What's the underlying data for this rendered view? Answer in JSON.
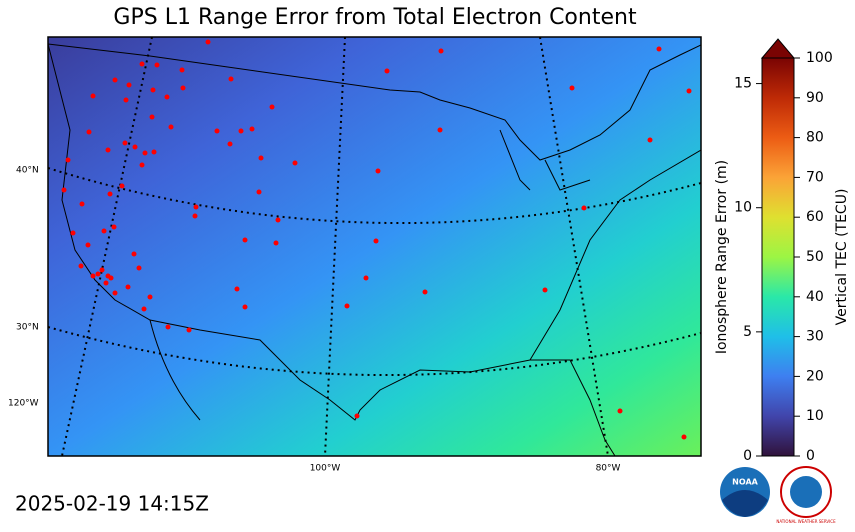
{
  "map": {
    "title": "GPS L1 Range Error from Total Electron Content",
    "timestamp": "2025-02-19 14:15Z",
    "graticule_labels": {
      "lat_40": "40°N",
      "lat_30": "30°N",
      "lon_120": "120°W",
      "lon_100": "100°W",
      "lon_80": "80°W"
    },
    "colorbar": {
      "left_label": "Ionosphere Range Error (m)",
      "left_lim": [
        0,
        16.03
      ],
      "left_ticks": [
        0,
        5,
        10,
        15
      ],
      "right_label": "Vertical TEC (TECU)",
      "right_lim": [
        0,
        100
      ],
      "right_ticks": [
        0,
        10,
        20,
        30,
        40,
        50,
        60,
        70,
        80,
        90,
        100
      ]
    },
    "logos": {
      "noaa": "NOAA",
      "nws": "NATIONAL WEATHER SERVICE"
    }
  }
}
